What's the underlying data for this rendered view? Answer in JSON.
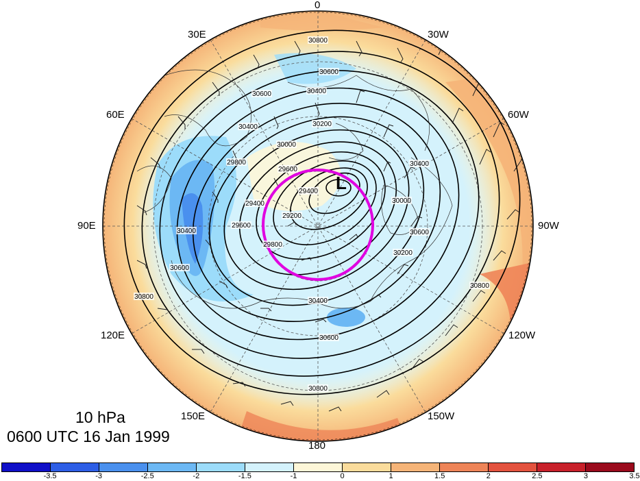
{
  "map": {
    "projection": "north polar stereographic",
    "lon_labels": {
      "top": "0",
      "top_left_1": "30E",
      "top_right_1": "30W",
      "left_upper": "60E",
      "right_upper": "60W",
      "left_mid": "90E",
      "right_mid": "90W",
      "left_lower": "120E",
      "right_lower": "120W",
      "bottom_left": "150E",
      "bottom_right": "150W",
      "bottom": "180"
    },
    "contour_labels": [
      "30800",
      "30600",
      "30400",
      "30600",
      "30400",
      "30200",
      "30000",
      "29800",
      "29600",
      "29400",
      "29200",
      "29400",
      "29600",
      "29800",
      "30000",
      "30200",
      "30400",
      "30600",
      "30800",
      "30400",
      "30600",
      "30800",
      "30400",
      "30600",
      "30800"
    ],
    "low_marker": "L",
    "highlight_circle_color": "#e000e0"
  },
  "caption": {
    "level": "10 hPa",
    "time": "0600 UTC 16 Jan 1999"
  },
  "colorbar": {
    "colors": [
      "#1010c8",
      "#2d5ee6",
      "#4a90ee",
      "#6cb8f4",
      "#9cdcfa",
      "#d4f2fc",
      "#fdf6d8",
      "#fadc9c",
      "#f5b478",
      "#ee8458",
      "#e3523e",
      "#c8202a",
      "#9a0a1c"
    ],
    "ticks": [
      "-3.5",
      "-3",
      "-2.5",
      "-2",
      "-1.5",
      "-1",
      "0",
      "1",
      "1.5",
      "2",
      "2.5",
      "3",
      "3.5"
    ]
  }
}
